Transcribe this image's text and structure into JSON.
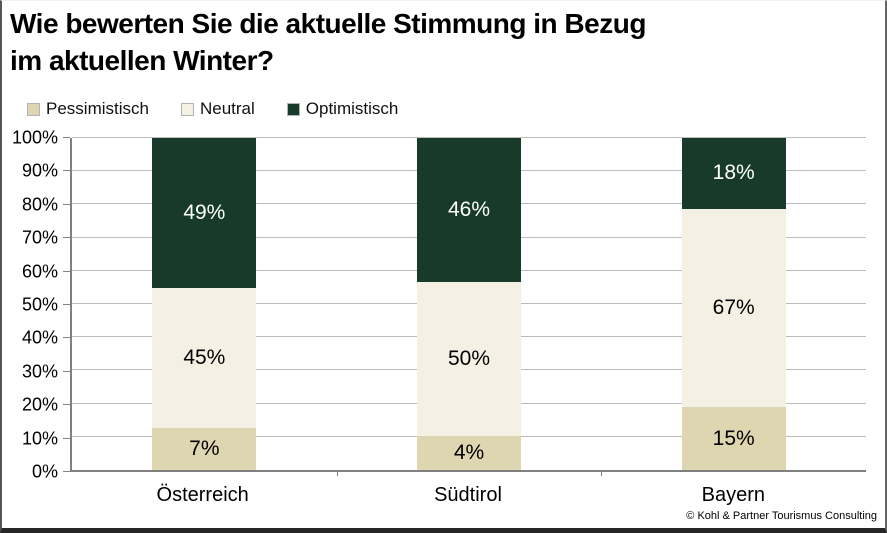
{
  "title": {
    "line1": "Wie bewerten Sie die aktuelle Stimmung in Bezug",
    "line2": "im aktuellen Winter?"
  },
  "legend": [
    {
      "label": "Pessimistisch",
      "color": "#ddd6b0"
    },
    {
      "label": "Neutral",
      "color": "#f4f1e4"
    },
    {
      "label": "Optimistisch",
      "color": "#183a2b"
    }
  ],
  "footer": {
    "copyright": "© Kohl & Partner Tourismus Consulting"
  },
  "colors": {
    "pessimistisch": "#ddd6b0",
    "neutral": "#f4f1e4",
    "optimistisch": "#183a2b",
    "gridline": "#bcbcbc",
    "axis": "#808080"
  },
  "chart_data": {
    "type": "bar",
    "stacked": true,
    "title": "Wie bewerten Sie die aktuelle Stimmung in Bezug im aktuellen Winter?",
    "categories": [
      "Österreich",
      "Südtirol",
      "Bayern"
    ],
    "series": [
      {
        "name": "Pessimistisch",
        "color": "#ddd6b0",
        "label_color": "#000000",
        "values": [
          7,
          4,
          15
        ]
      },
      {
        "name": "Neutral",
        "color": "#f4f1e4",
        "label_color": "#000000",
        "values": [
          45,
          50,
          67
        ]
      },
      {
        "name": "Optimistisch",
        "color": "#183a2b",
        "label_color": "#ffffff",
        "values": [
          49,
          46,
          18
        ]
      }
    ],
    "value_suffix": "%",
    "xlabel": "",
    "ylabel": "",
    "y_axis": {
      "min": 0,
      "max": 100,
      "step": 10,
      "tick_labels": [
        "0%",
        "10%",
        "20%",
        "30%",
        "40%",
        "50%",
        "60%",
        "70%",
        "80%",
        "90%",
        "100%"
      ]
    },
    "grid": true,
    "legend_position": "top-left"
  }
}
